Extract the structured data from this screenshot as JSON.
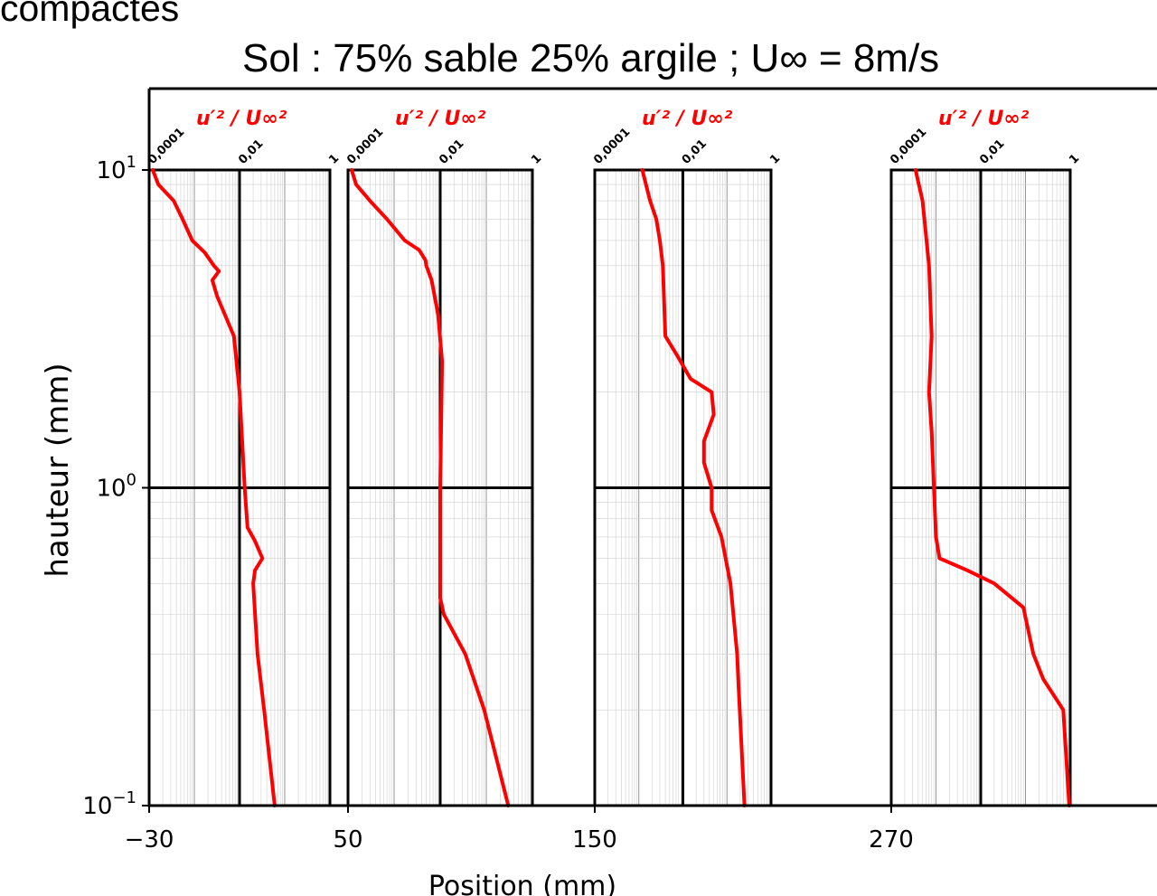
{
  "page": {
    "heading": "compactes",
    "title": "Sol : 75% sable 25% argile ; U∞ = 8m/s"
  },
  "chart_data": {
    "type": "line",
    "xlabel": "Position (mm)",
    "ylabel": "hauteur (mm)",
    "yscale": "log",
    "ylim": [
      0.1,
      10
    ],
    "y_ticks": [
      {
        "base": "10",
        "exp": "1"
      },
      {
        "base": "10",
        "exp": "0"
      },
      {
        "base": "10",
        "exp": "−1"
      }
    ],
    "x_ticks": [
      "−30",
      "50",
      "150",
      "270"
    ],
    "panel_quantity": "u′² / U∞²",
    "panel_scale": "log",
    "panel_xlim": [
      0.0001,
      1
    ],
    "panel_ticks": [
      "0,0001",
      "0,01",
      "1"
    ],
    "line_color": "#ff0000",
    "panels": [
      {
        "position": "−30",
        "profile": [
          {
            "h": 10,
            "v": 0.00012
          },
          {
            "h": 9.0,
            "v": 0.00016
          },
          {
            "h": 8.0,
            "v": 0.00035
          },
          {
            "h": 7.0,
            "v": 0.00055
          },
          {
            "h": 6.0,
            "v": 0.0009
          },
          {
            "h": 5.5,
            "v": 0.0017
          },
          {
            "h": 5.0,
            "v": 0.0027
          },
          {
            "h": 4.8,
            "v": 0.0035
          },
          {
            "h": 4.5,
            "v": 0.0025
          },
          {
            "h": 4.0,
            "v": 0.0032
          },
          {
            "h": 3.0,
            "v": 0.0075
          },
          {
            "h": 2.0,
            "v": 0.01
          },
          {
            "h": 1.0,
            "v": 0.013
          },
          {
            "h": 0.75,
            "v": 0.015
          },
          {
            "h": 0.68,
            "v": 0.022
          },
          {
            "h": 0.6,
            "v": 0.032
          },
          {
            "h": 0.55,
            "v": 0.022
          },
          {
            "h": 0.5,
            "v": 0.02
          },
          {
            "h": 0.3,
            "v": 0.025
          },
          {
            "h": 0.2,
            "v": 0.035
          },
          {
            "h": 0.1,
            "v": 0.06
          }
        ]
      },
      {
        "position": "50",
        "profile": [
          {
            "h": 10,
            "v": 0.00012
          },
          {
            "h": 9.0,
            "v": 0.00015
          },
          {
            "h": 8.0,
            "v": 0.0003
          },
          {
            "h": 7.0,
            "v": 0.0007
          },
          {
            "h": 6.0,
            "v": 0.0017
          },
          {
            "h": 5.6,
            "v": 0.0035
          },
          {
            "h": 5.2,
            "v": 0.0048
          },
          {
            "h": 5.0,
            "v": 0.005
          },
          {
            "h": 4.5,
            "v": 0.0065
          },
          {
            "h": 3.5,
            "v": 0.009
          },
          {
            "h": 2.5,
            "v": 0.011
          },
          {
            "h": 1.0,
            "v": 0.01
          },
          {
            "h": 0.45,
            "v": 0.01
          },
          {
            "h": 0.4,
            "v": 0.012
          },
          {
            "h": 0.3,
            "v": 0.035
          },
          {
            "h": 0.2,
            "v": 0.09
          },
          {
            "h": 0.1,
            "v": 0.3
          }
        ]
      },
      {
        "position": "150",
        "profile": [
          {
            "h": 10,
            "v": 0.0012
          },
          {
            "h": 8.0,
            "v": 0.0018
          },
          {
            "h": 7.0,
            "v": 0.0025
          },
          {
            "h": 6.0,
            "v": 0.003
          },
          {
            "h": 5.0,
            "v": 0.0035
          },
          {
            "h": 3.0,
            "v": 0.004
          },
          {
            "h": 2.6,
            "v": 0.0075
          },
          {
            "h": 2.2,
            "v": 0.015
          },
          {
            "h": 2.0,
            "v": 0.045
          },
          {
            "h": 1.7,
            "v": 0.05
          },
          {
            "h": 1.4,
            "v": 0.03
          },
          {
            "h": 1.2,
            "v": 0.03
          },
          {
            "h": 1.0,
            "v": 0.045
          },
          {
            "h": 0.85,
            "v": 0.045
          },
          {
            "h": 0.7,
            "v": 0.075
          },
          {
            "h": 0.5,
            "v": 0.12
          },
          {
            "h": 0.3,
            "v": 0.17
          },
          {
            "h": 0.25,
            "v": 0.18
          },
          {
            "h": 0.1,
            "v": 0.25
          }
        ]
      },
      {
        "position": "270",
        "profile": [
          {
            "h": 10,
            "v": 0.00035
          },
          {
            "h": 8.0,
            "v": 0.0005
          },
          {
            "h": 5.0,
            "v": 0.0007
          },
          {
            "h": 3.0,
            "v": 0.0008
          },
          {
            "h": 2.0,
            "v": 0.0007
          },
          {
            "h": 1.5,
            "v": 0.0008
          },
          {
            "h": 1.0,
            "v": 0.0009
          },
          {
            "h": 0.7,
            "v": 0.001
          },
          {
            "h": 0.6,
            "v": 0.0012
          },
          {
            "h": 0.55,
            "v": 0.005
          },
          {
            "h": 0.5,
            "v": 0.02
          },
          {
            "h": 0.42,
            "v": 0.09
          },
          {
            "h": 0.3,
            "v": 0.15
          },
          {
            "h": 0.25,
            "v": 0.25
          },
          {
            "h": 0.2,
            "v": 0.7
          },
          {
            "h": 0.1,
            "v": 0.95
          }
        ]
      }
    ]
  }
}
